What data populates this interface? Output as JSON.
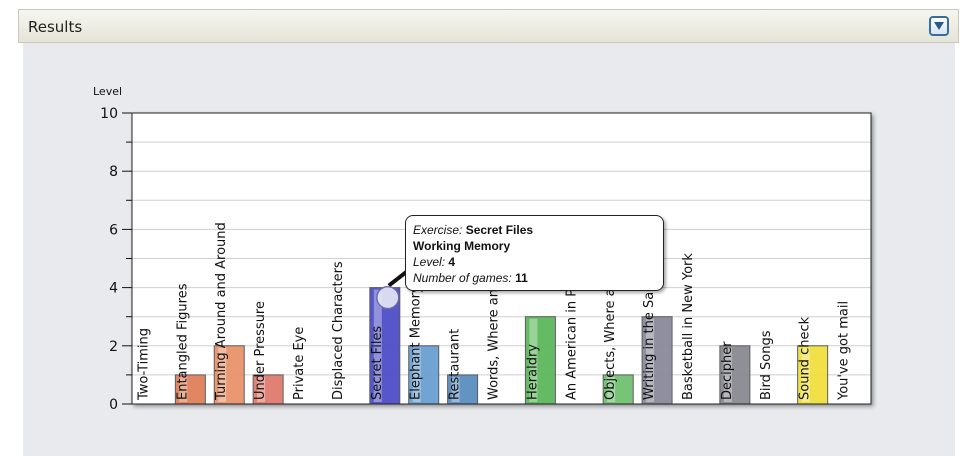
{
  "header": {
    "title": "Results"
  },
  "chart_data": {
    "type": "bar",
    "ylabel": "Level",
    "ylim": [
      0,
      10
    ],
    "yticks": [
      0,
      2,
      4,
      6,
      8,
      10
    ],
    "grid": true,
    "categories": [
      "Two-Timing",
      "Entangled Figures",
      "Turning Around and Around",
      "Under Pressure",
      "Private Eye",
      "Displaced Characters",
      "Secret Files",
      "Elephant Memory",
      "Restaurant",
      "Words, Where and When",
      "Heraldry",
      "An American in Paris",
      "Objects, Where and When",
      "Writing in the Sand",
      "Basketball in New York",
      "Decipher",
      "Bird Songs",
      "Sound check",
      "You've got mail"
    ],
    "values": [
      0,
      1,
      2,
      1,
      0,
      0,
      4,
      2,
      1,
      0,
      3,
      0,
      1,
      3,
      0,
      2,
      0,
      2,
      0
    ],
    "colors": [
      "#cccccc",
      "#e0805a",
      "#e8936a",
      "#e07a6e",
      "#cccccc",
      "#cccccc",
      "#4f4fc8",
      "#6aa0d0",
      "#5a8ec0",
      "#cccccc",
      "#5cb85c",
      "#cccccc",
      "#70c070",
      "#8a8a9a",
      "#cccccc",
      "#8a8a92",
      "#cccccc",
      "#f0e040",
      "#cccccc"
    ]
  },
  "tooltip": {
    "exercise_label": "Exercise:",
    "exercise_value": "Secret Files",
    "category": "Working Memory",
    "level_label": "Level:",
    "level_value": "4",
    "games_label": "Number of games:",
    "games_value": "11"
  }
}
